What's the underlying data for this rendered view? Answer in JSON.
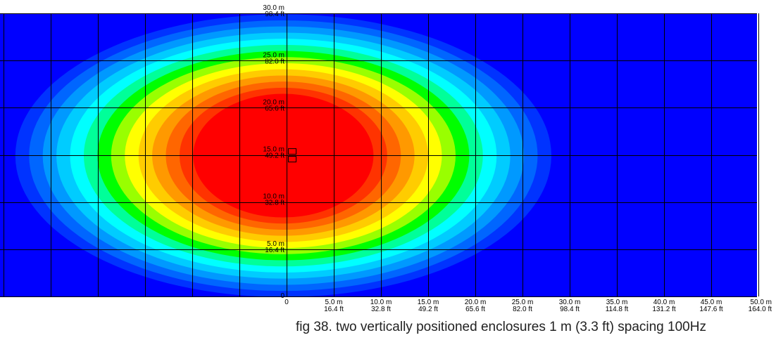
{
  "chart_data": {
    "type": "heatmap",
    "title": "",
    "xlabel": "",
    "ylabel": "",
    "xlim": [
      -30.3,
      50.0
    ],
    "ylim": [
      0,
      30.0
    ],
    "grid": true,
    "colormap": [
      "#0000ff",
      "#0033ff",
      "#0066ff",
      "#0099ff",
      "#00ccff",
      "#00ffff",
      "#00ff99",
      "#00ff00",
      "#99ff00",
      "#ffff00",
      "#ffcc00",
      "#ff9900",
      "#ff6600",
      "#ff3300",
      "#ff0000"
    ],
    "background_color": "#0000ff",
    "source": {
      "x": 0.7,
      "y": 15.0,
      "enclosure_count": 2,
      "spacing_m": 1.0
    },
    "x_ticks": [
      {
        "value": 0,
        "m": "0",
        "ft": ""
      },
      {
        "value": 5,
        "m": "5.0 m",
        "ft": "16.4 ft"
      },
      {
        "value": 10,
        "m": "10.0 m",
        "ft": "32.8 ft"
      },
      {
        "value": 15,
        "m": "15.0 m",
        "ft": "49.2 ft"
      },
      {
        "value": 20,
        "m": "20.0 m",
        "ft": "65.6 ft"
      },
      {
        "value": 25,
        "m": "25.0 m",
        "ft": "82.0 ft"
      },
      {
        "value": 30,
        "m": "30.0 m",
        "ft": "98.4 ft"
      },
      {
        "value": 35,
        "m": "35.0 m",
        "ft": "114.8 ft"
      },
      {
        "value": 40,
        "m": "40.0 m",
        "ft": "131.2 ft"
      },
      {
        "value": 45,
        "m": "45.0 m",
        "ft": "147.6 ft"
      },
      {
        "value": 50,
        "m": "50.0 m",
        "ft": "164.0 ft"
      }
    ],
    "y_ticks": [
      {
        "value": 0,
        "m": "0",
        "ft": ""
      },
      {
        "value": 5,
        "m": "5.0 m",
        "ft": "16.4 ft"
      },
      {
        "value": 10,
        "m": "10.0 m",
        "ft": "32.8 ft"
      },
      {
        "value": 15,
        "m": "15.0 m",
        "ft": "49.2 ft"
      },
      {
        "value": 20,
        "m": "20.0 m",
        "ft": "65.6 ft"
      },
      {
        "value": 25,
        "m": "25.0 m",
        "ft": "82.0 ft"
      },
      {
        "value": 30,
        "m": "30.0 m",
        "ft": "98.4 ft"
      }
    ]
  },
  "caption": "fig 38. two vertically positioned enclosures 1 m (3.3 ft) spacing 100Hz"
}
